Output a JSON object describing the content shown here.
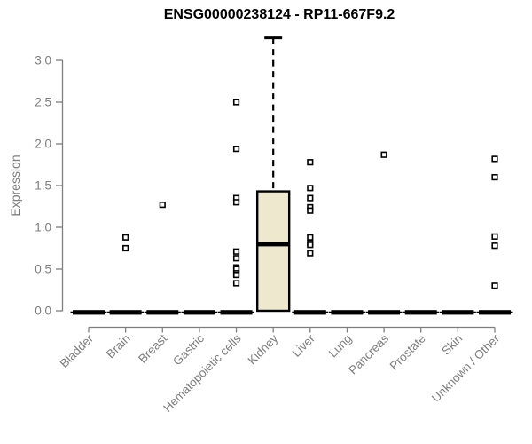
{
  "chart_data": {
    "type": "boxplot",
    "title": "ENSG00000238124 - RP11-667F9.2",
    "ylabel": "Expression",
    "xlabel": "",
    "ylim": [
      0,
      3.3
    ],
    "yticks": [
      "0.0",
      "0.5",
      "1.0",
      "1.5",
      "2.0",
      "2.5",
      "3.0"
    ],
    "ytick_values": [
      0.0,
      0.5,
      1.0,
      1.5,
      2.0,
      2.5,
      3.0
    ],
    "grid": "off",
    "legend": "none",
    "colors": {
      "box_fill": "#ede8ce",
      "box_stroke": "#000000",
      "median": "#000000",
      "axis": "#7d7d7d",
      "tick_label": "#7d7d7d",
      "title": "#000000",
      "outlier": "#000000"
    },
    "categories": [
      "Bladder",
      "Brain",
      "Breast",
      "Gastric",
      "Hematopoietic cells",
      "Kidney",
      "Liver",
      "Lung",
      "Pancreas",
      "Prostate",
      "Skin",
      "Unknown / Other"
    ],
    "boxes": [
      {
        "category": "Bladder",
        "q1": 0,
        "median": 0,
        "q3": 0,
        "whisker_low": 0,
        "whisker_high": 0,
        "outliers": []
      },
      {
        "category": "Brain",
        "q1": 0,
        "median": 0,
        "q3": 0,
        "whisker_low": 0,
        "whisker_high": 0,
        "outliers": [
          0.88,
          0.75
        ]
      },
      {
        "category": "Breast",
        "q1": 0,
        "median": 0,
        "q3": 0,
        "whisker_low": 0,
        "whisker_high": 0,
        "outliers": [
          1.27
        ]
      },
      {
        "category": "Gastric",
        "q1": 0,
        "median": 0,
        "q3": 0,
        "whisker_low": 0,
        "whisker_high": 0,
        "outliers": []
      },
      {
        "category": "Hematopoietic cells",
        "q1": 0,
        "median": 0,
        "q3": 0,
        "whisker_low": 0,
        "whisker_high": 0,
        "outliers": [
          2.5,
          1.94,
          1.35,
          1.3,
          0.71,
          0.63,
          0.52,
          0.5,
          0.45,
          0.43,
          0.33
        ]
      },
      {
        "category": "Kidney",
        "q1": 0,
        "median": 0.8,
        "q3": 1.43,
        "whisker_low": 0,
        "whisker_high": 3.27,
        "outliers": []
      },
      {
        "category": "Liver",
        "q1": 0,
        "median": 0,
        "q3": 0,
        "whisker_low": 0,
        "whisker_high": 0,
        "outliers": [
          1.78,
          1.47,
          1.35,
          1.24,
          1.2,
          0.88,
          0.81,
          0.79,
          0.69
        ]
      },
      {
        "category": "Lung",
        "q1": 0,
        "median": 0,
        "q3": 0,
        "whisker_low": 0,
        "whisker_high": 0,
        "outliers": []
      },
      {
        "category": "Pancreas",
        "q1": 0,
        "median": 0,
        "q3": 0,
        "whisker_low": 0,
        "whisker_high": 0,
        "outliers": [
          1.87
        ]
      },
      {
        "category": "Prostate",
        "q1": 0,
        "median": 0,
        "q3": 0,
        "whisker_low": 0,
        "whisker_high": 0,
        "outliers": []
      },
      {
        "category": "Skin",
        "q1": 0,
        "median": 0,
        "q3": 0,
        "whisker_low": 0,
        "whisker_high": 0,
        "outliers": []
      },
      {
        "category": "Unknown / Other",
        "q1": 0,
        "median": 0,
        "q3": 0,
        "whisker_low": 0,
        "whisker_high": 0,
        "outliers": [
          1.82,
          1.6,
          0.89,
          0.78,
          0.3
        ]
      }
    ]
  }
}
